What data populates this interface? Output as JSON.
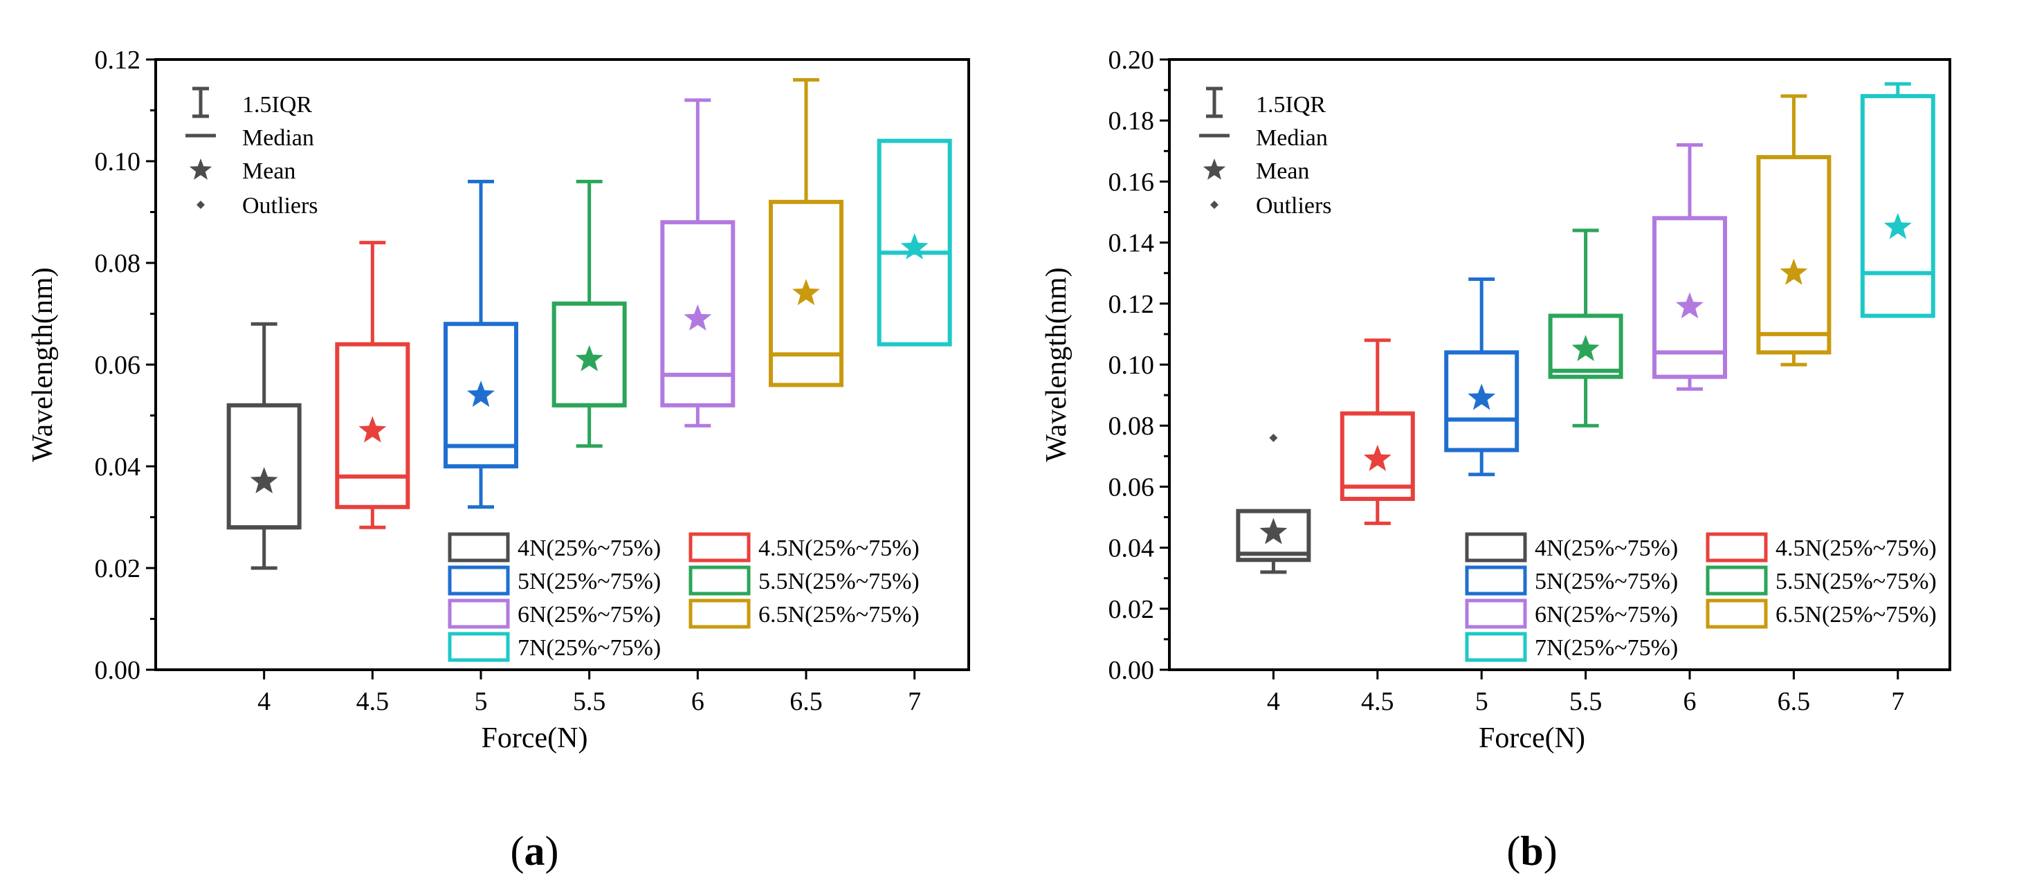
{
  "chart_data": [
    {
      "type": "box",
      "panel_label": "a",
      "xlabel": "Force(N)",
      "ylabel": "Wavelength(nm)",
      "ylim": [
        0,
        0.12
      ],
      "yticks": [
        "0.00",
        "0.02",
        "0.04",
        "0.06",
        "0.08",
        "0.10",
        "0.12"
      ],
      "categories": [
        "4",
        "4.5",
        "5",
        "5.5",
        "6",
        "6.5",
        "7"
      ],
      "series": [
        {
          "name": "4N(25%~75%)",
          "x": 4,
          "color": "#4d4d4d",
          "whisker_low": 0.02,
          "q1": 0.028,
          "median": 0.028,
          "q3": 0.052,
          "whisker_high": 0.068,
          "mean": 0.037,
          "outliers": []
        },
        {
          "name": "4.5N(25%~75%)",
          "x": 4.5,
          "color": "#e8413c",
          "whisker_low": 0.028,
          "q1": 0.032,
          "median": 0.038,
          "q3": 0.064,
          "whisker_high": 0.084,
          "mean": 0.047,
          "outliers": []
        },
        {
          "name": "5N(25%~75%)",
          "x": 5,
          "color": "#1f6fd0",
          "whisker_low": 0.032,
          "q1": 0.04,
          "median": 0.044,
          "q3": 0.068,
          "whisker_high": 0.096,
          "mean": 0.054,
          "outliers": []
        },
        {
          "name": "5.5N(25%~75%)",
          "x": 5.5,
          "color": "#2ca55a",
          "whisker_low": 0.044,
          "q1": 0.052,
          "median": 0.052,
          "q3": 0.072,
          "whisker_high": 0.096,
          "mean": 0.061,
          "outliers": []
        },
        {
          "name": "6N(25%~75%)",
          "x": 6,
          "color": "#b27ae0",
          "whisker_low": 0.048,
          "q1": 0.052,
          "median": 0.058,
          "q3": 0.088,
          "whisker_high": 0.112,
          "mean": 0.069,
          "outliers": []
        },
        {
          "name": "6.5N(25%~75%)",
          "x": 6.5,
          "color": "#c99a0e",
          "whisker_low": 0.056,
          "q1": 0.056,
          "median": 0.062,
          "q3": 0.092,
          "whisker_high": 0.116,
          "mean": 0.074,
          "outliers": []
        },
        {
          "name": "7N(25%~75%)",
          "x": 7,
          "color": "#1fc8c8",
          "whisker_low": 0.064,
          "q1": 0.064,
          "median": 0.082,
          "q3": 0.104,
          "whisker_high": 0.104,
          "mean": 0.083,
          "outliers": []
        }
      ]
    },
    {
      "type": "box",
      "panel_label": "b",
      "xlabel": "Force(N)",
      "ylabel": "Wavelength(nm)",
      "ylim": [
        0,
        0.2
      ],
      "yticks": [
        "0.00",
        "0.02",
        "0.04",
        "0.06",
        "0.08",
        "0.10",
        "0.12",
        "0.14",
        "0.16",
        "0.18",
        "0.20"
      ],
      "categories": [
        "4",
        "4.5",
        "5",
        "5.5",
        "6",
        "6.5",
        "7"
      ],
      "series": [
        {
          "name": "4N(25%~75%)",
          "x": 4,
          "color": "#4d4d4d",
          "whisker_low": 0.032,
          "q1": 0.036,
          "median": 0.038,
          "q3": 0.052,
          "whisker_high": 0.052,
          "mean": 0.045,
          "outliers": [
            0.076
          ]
        },
        {
          "name": "4.5N(25%~75%)",
          "x": 4.5,
          "color": "#e8413c",
          "whisker_low": 0.048,
          "q1": 0.056,
          "median": 0.06,
          "q3": 0.084,
          "whisker_high": 0.108,
          "mean": 0.069,
          "outliers": []
        },
        {
          "name": "5N(25%~75%)",
          "x": 5,
          "color": "#1f6fd0",
          "whisker_low": 0.064,
          "q1": 0.072,
          "median": 0.082,
          "q3": 0.104,
          "whisker_high": 0.128,
          "mean": 0.089,
          "outliers": []
        },
        {
          "name": "5.5N(25%~75%)",
          "x": 5.5,
          "color": "#2ca55a",
          "whisker_low": 0.08,
          "q1": 0.096,
          "median": 0.098,
          "q3": 0.116,
          "whisker_high": 0.144,
          "mean": 0.105,
          "outliers": []
        },
        {
          "name": "6N(25%~75%)",
          "x": 6,
          "color": "#b27ae0",
          "whisker_low": 0.092,
          "q1": 0.096,
          "median": 0.104,
          "q3": 0.148,
          "whisker_high": 0.172,
          "mean": 0.119,
          "outliers": []
        },
        {
          "name": "6.5N(25%~75%)",
          "x": 6.5,
          "color": "#c99a0e",
          "whisker_low": 0.1,
          "q1": 0.104,
          "median": 0.11,
          "q3": 0.168,
          "whisker_high": 0.188,
          "mean": 0.13,
          "outliers": []
        },
        {
          "name": "7N(25%~75%)",
          "x": 7,
          "color": "#1fc8c8",
          "whisker_low": 0.116,
          "q1": 0.116,
          "median": 0.13,
          "q3": 0.188,
          "whisker_high": 0.192,
          "mean": 0.145,
          "outliers": []
        }
      ]
    }
  ],
  "symbol_legend": {
    "iqr_label": "1.5IQR",
    "median_label": "Median",
    "mean_label": "Mean",
    "outliers_label": "Outliers"
  },
  "colors": {
    "axis": "#000000",
    "symbol_legend": "#4d4d4d"
  }
}
